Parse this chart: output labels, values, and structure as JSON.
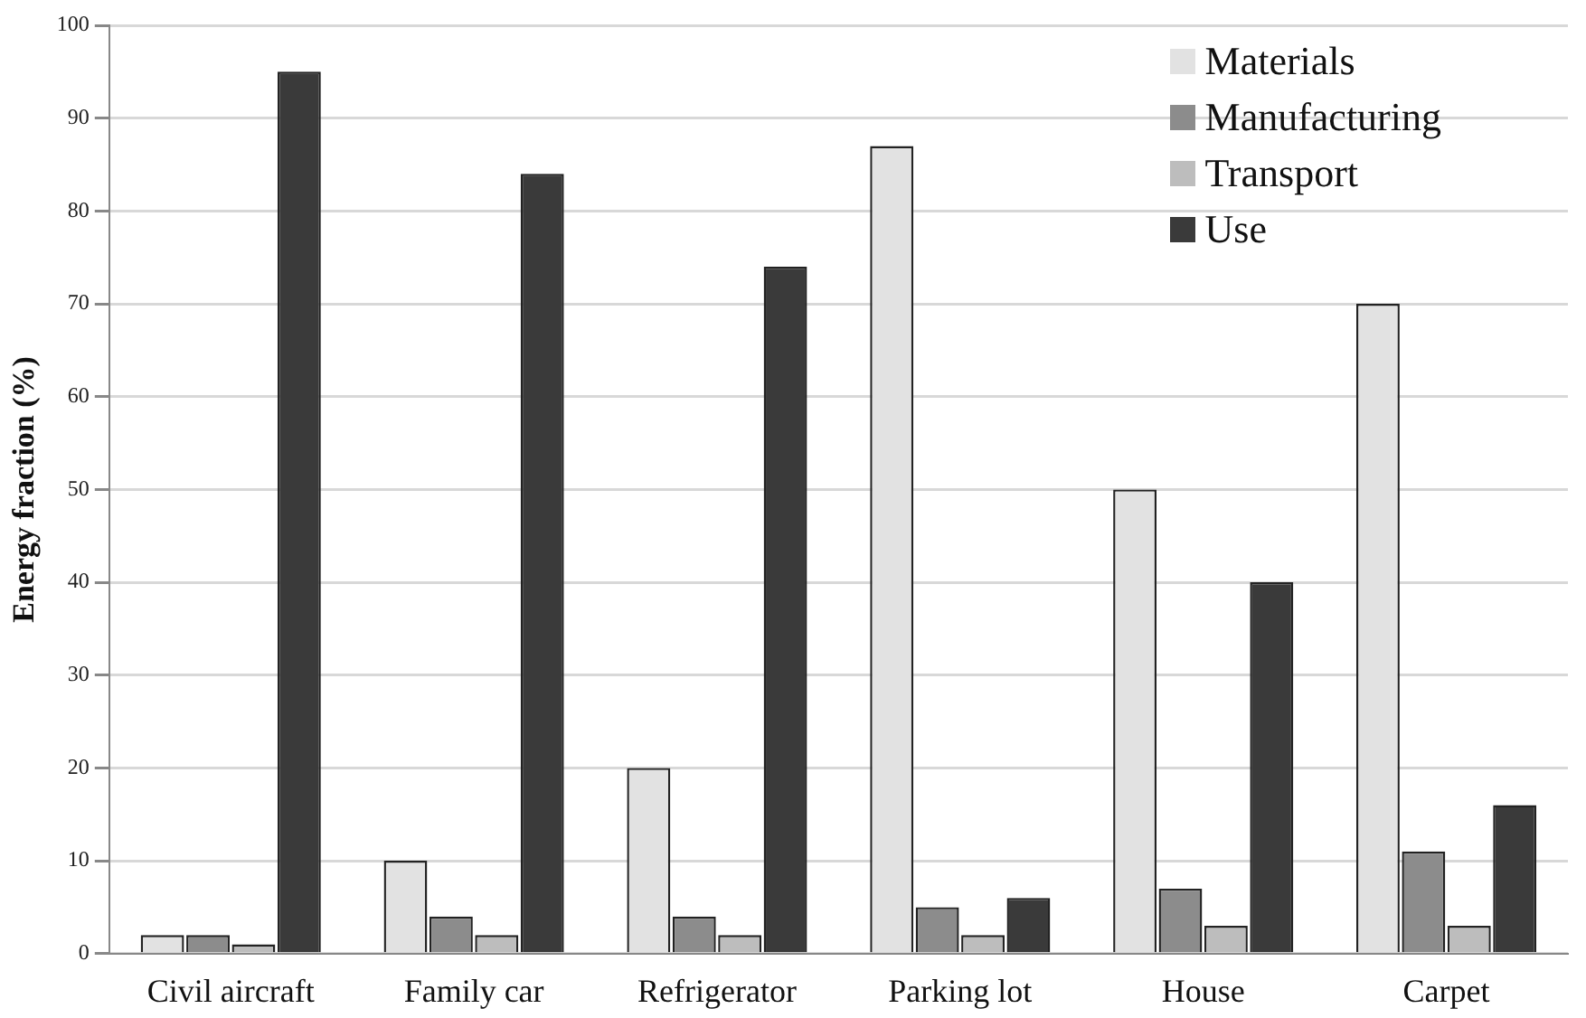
{
  "chart_data": {
    "type": "bar",
    "ylabel": "Energy fraction (%)",
    "categories": [
      "Civil aircraft",
      "Family car",
      "Refrigerator",
      "Parking lot",
      "House",
      "Carpet"
    ],
    "series": [
      {
        "name": "Materials",
        "color": "#e2e2e2",
        "values": [
          2,
          10,
          20,
          87,
          50,
          70
        ]
      },
      {
        "name": "Manufacturing",
        "color": "#8c8c8c",
        "values": [
          2,
          4,
          4,
          5,
          7,
          11
        ]
      },
      {
        "name": "Transport",
        "color": "#bdbdbd",
        "values": [
          1,
          2,
          2,
          2,
          3,
          3
        ]
      },
      {
        "name": "Use",
        "color": "#3a3a3a",
        "values": [
          95,
          84,
          74,
          6,
          40,
          16
        ]
      }
    ],
    "ylim": [
      0,
      100
    ],
    "yticks": [
      0,
      10,
      20,
      30,
      40,
      50,
      60,
      70,
      80,
      90,
      100
    ],
    "grid": "y",
    "legend": "top right"
  }
}
